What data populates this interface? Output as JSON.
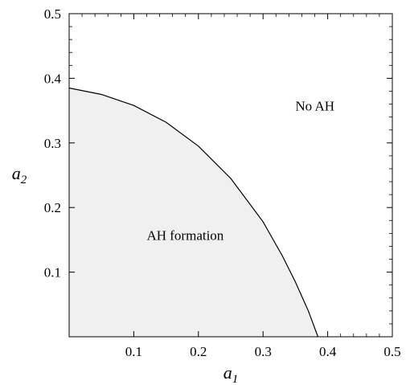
{
  "chart_data": {
    "type": "area",
    "title": "",
    "xlabel": {
      "base": "a",
      "sub": "1"
    },
    "ylabel": {
      "base": "a",
      "sub": "2"
    },
    "xlim": [
      0,
      0.5
    ],
    "ylim": [
      0,
      0.5
    ],
    "xticks": [
      0.1,
      0.2,
      0.3,
      0.4,
      0.5
    ],
    "yticks": [
      0.1,
      0.2,
      0.3,
      0.4,
      0.5
    ],
    "xtick_labels": [
      "0.1",
      "0.2",
      "0.3",
      "0.4",
      "0.5"
    ],
    "ytick_labels": [
      "0.1",
      "0.2",
      "0.3",
      "0.4",
      "0.5"
    ],
    "grid": false,
    "fill_color": "#f0f0f0",
    "line_color": "#000000",
    "boundary": {
      "x": [
        0,
        0.05,
        0.1,
        0.15,
        0.2,
        0.25,
        0.3,
        0.33,
        0.35,
        0.37,
        0.385
      ],
      "y": [
        0.385,
        0.375,
        0.358,
        0.332,
        0.295,
        0.245,
        0.178,
        0.125,
        0.085,
        0.04,
        0
      ]
    },
    "regions": [
      {
        "label": "AH formation",
        "x": 0.12,
        "y": 0.15
      },
      {
        "label": "No AH",
        "x": 0.35,
        "y": 0.35
      }
    ]
  }
}
